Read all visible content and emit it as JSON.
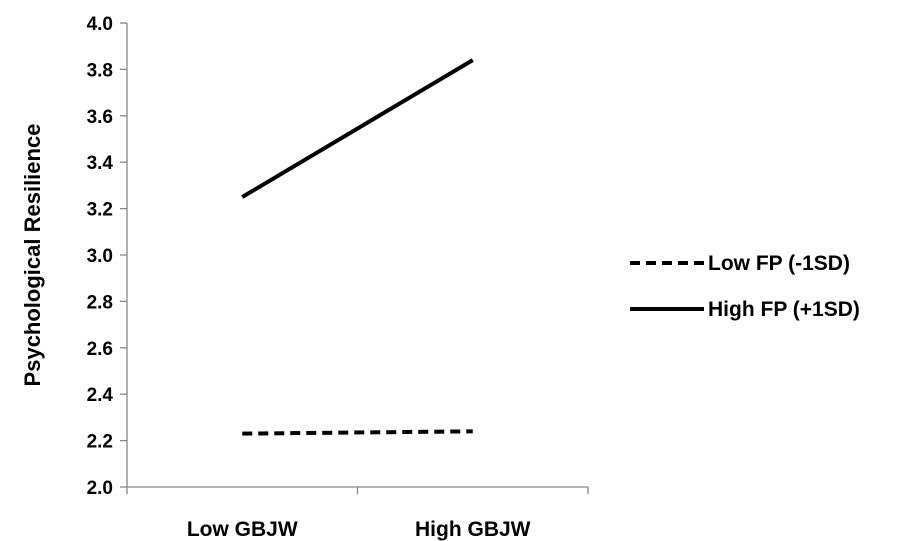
{
  "chart_data": {
    "type": "line",
    "title": "",
    "xlabel": "",
    "ylabel": "Psychological Resilience",
    "categories": [
      "Low GBJW",
      "High GBJW"
    ],
    "ylim": [
      2.0,
      4.0
    ],
    "yticks": [
      "2.0",
      "2.2",
      "2.4",
      "2.6",
      "2.8",
      "3.0",
      "3.2",
      "3.4",
      "3.6",
      "3.8",
      "4.0"
    ],
    "grid": false,
    "legend_position": "right",
    "series": [
      {
        "name": "Low FP (-1SD)",
        "values": [
          2.23,
          2.24
        ],
        "style": "dashed",
        "color": "#000000"
      },
      {
        "name": "High FP (+1SD)",
        "values": [
          3.25,
          3.84
        ],
        "style": "solid",
        "color": "#000000"
      }
    ]
  }
}
